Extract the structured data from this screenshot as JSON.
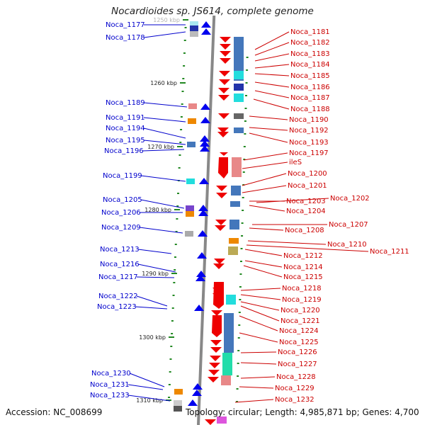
{
  "title": "Nocardioides sp. JS614, complete genome",
  "accession": "Accession: NC_008699",
  "topology": "Topology: circular; Length: 4,985,871 bp; Genes: 4,700",
  "colors": {
    "forward_gene": "#0000ee",
    "reverse_gene": "#ee0000",
    "left_label": "#0000cc",
    "right_label": "#cc0000",
    "backbone": "#888888",
    "tick": "#228822"
  },
  "kbp_ticks": [
    "1250 kbp",
    "1260 kbp",
    "1270 kbp",
    "1280 kbp",
    "1290 kbp",
    "1300 kbp",
    "1310 kbp"
  ],
  "left_genes": [
    "Noca_1177",
    "Noca_1178",
    "Noca_1189",
    "Noca_1191",
    "Noca_1194",
    "Noca_1195",
    "Noca_1196",
    "Noca_1199",
    "Noca_1205",
    "Noca_1206",
    "Noca_1209",
    "Noca_1213",
    "Noca_1216",
    "Noca_1217",
    "Noca_1222",
    "Noca_1223",
    "Noca_1230",
    "Noca_1231",
    "Noca_1233"
  ],
  "right_genes": [
    "Noca_1181",
    "Noca_1182",
    "Noca_1183",
    "Noca_1184",
    "Noca_1185",
    "Noca_1186",
    "Noca_1187",
    "Noca_1188",
    "Noca_1190",
    "Noca_1192",
    "Noca_1193",
    "Noca_1197",
    "ileS",
    "Noca_1200",
    "Noca_1201",
    "Noca_1202",
    "Noca_1203",
    "Noca_1204",
    "Noca_1207",
    "Noca_1208",
    "Noca_1210",
    "Noca_1211",
    "Noca_1212",
    "Noca_1214",
    "Noca_1215",
    "Noca_1218",
    "Noca_1219",
    "Noca_1220",
    "Noca_1221",
    "Noca_1224",
    "Noca_1225",
    "Noca_1226",
    "Noca_1227",
    "Noca_1228",
    "Noca_1229",
    "Noca_1232"
  ]
}
